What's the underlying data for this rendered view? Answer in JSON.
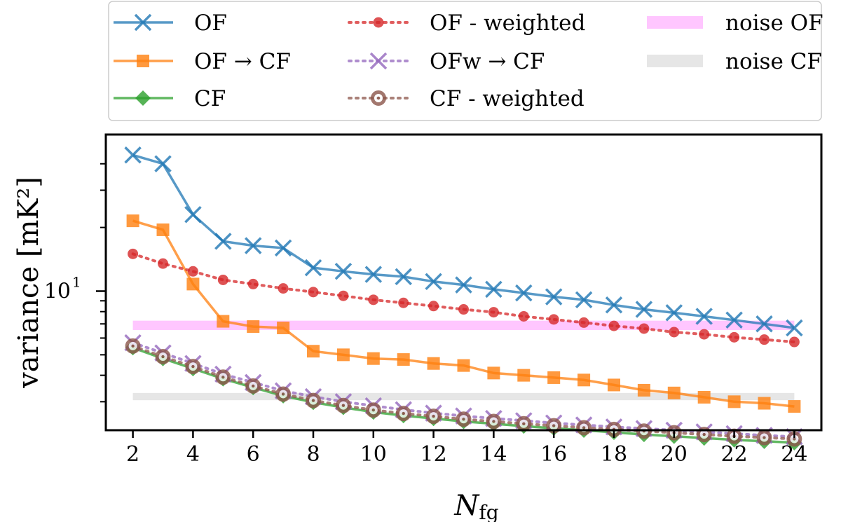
{
  "chart_data": {
    "type": "line",
    "xlabel": "N",
    "xlabel_sub": "fg",
    "ylabel": "variance [mK²]",
    "yscale": "log",
    "xlim": [
      1.1,
      24.9
    ],
    "ylim": [
      2.2,
      55
    ],
    "x": [
      2,
      3,
      4,
      5,
      6,
      7,
      8,
      9,
      10,
      11,
      12,
      13,
      14,
      15,
      16,
      17,
      18,
      19,
      20,
      21,
      22,
      23,
      24
    ],
    "x_ticks": [
      2,
      4,
      6,
      8,
      10,
      12,
      14,
      16,
      18,
      20,
      22,
      24
    ],
    "y_major_ticks": [
      {
        "value": 10,
        "label": "10",
        "exp": "1"
      }
    ],
    "y_minor_ticks": [
      3,
      4,
      5,
      6,
      7,
      8,
      9,
      20,
      30,
      40
    ],
    "series": [
      {
        "name": "OF",
        "color": "#1f77b4",
        "style": "solid",
        "marker": "x",
        "values": [
          44,
          40,
          23,
          17.2,
          16.4,
          16.0,
          12.9,
          12.4,
          12.0,
          11.7,
          11.1,
          10.7,
          10.2,
          9.8,
          9.4,
          9.1,
          8.6,
          8.2,
          7.9,
          7.6,
          7.3,
          7.0,
          6.7
        ]
      },
      {
        "name": "OF → CF",
        "color": "#ff7f0e",
        "style": "solid",
        "marker": "square",
        "values": [
          21.5,
          19.5,
          10.8,
          7.2,
          6.8,
          6.7,
          5.2,
          5.0,
          4.8,
          4.75,
          4.55,
          4.45,
          4.1,
          4.0,
          3.9,
          3.8,
          3.6,
          3.4,
          3.3,
          3.15,
          3.0,
          2.95,
          2.85
        ]
      },
      {
        "name": "CF",
        "color": "#2ca02c",
        "style": "solid",
        "marker": "diamond",
        "values": [
          5.4,
          4.8,
          4.3,
          3.85,
          3.5,
          3.2,
          2.98,
          2.82,
          2.68,
          2.58,
          2.5,
          2.42,
          2.36,
          2.3,
          2.25,
          2.2,
          2.15,
          2.1,
          2.06,
          2.02,
          1.98,
          1.95,
          1.92
        ]
      },
      {
        "name": "OF - weighted",
        "color": "#d62728",
        "style": "dotted",
        "marker": "circle",
        "values": [
          15.0,
          13.5,
          12.4,
          11.3,
          10.8,
          10.3,
          9.9,
          9.5,
          9.1,
          8.8,
          8.5,
          8.2,
          7.95,
          7.6,
          7.35,
          7.1,
          6.85,
          6.65,
          6.4,
          6.25,
          6.05,
          5.9,
          5.75
        ]
      },
      {
        "name": "OFw → CF",
        "color": "#9467bd",
        "style": "dotted",
        "marker": "x",
        "values": [
          5.7,
          5.1,
          4.55,
          4.05,
          3.7,
          3.38,
          3.17,
          3.0,
          2.87,
          2.75,
          2.65,
          2.57,
          2.5,
          2.44,
          2.38,
          2.33,
          2.28,
          2.24,
          2.2,
          2.16,
          2.12,
          2.08,
          2.05
        ]
      },
      {
        "name": "CF - weighted",
        "color": "#8c564b",
        "style": "dotted",
        "marker": "ring",
        "values": [
          5.5,
          4.9,
          4.4,
          3.92,
          3.56,
          3.26,
          3.04,
          2.88,
          2.74,
          2.64,
          2.56,
          2.48,
          2.42,
          2.36,
          2.31,
          2.26,
          2.22,
          2.18,
          2.14,
          2.1,
          2.06,
          2.03,
          2.0
        ]
      }
    ],
    "bands": [
      {
        "name": "noise OF",
        "color": "#ff80ff",
        "opacity": 0.45,
        "y_low": 6.55,
        "y_high": 7.25,
        "x_start": 2,
        "x_end": 24
      },
      {
        "name": "noise CF",
        "color": "#c8c8c8",
        "opacity": 0.45,
        "y_low": 3.05,
        "y_high": 3.3,
        "x_start": 2,
        "x_end": 24
      }
    ],
    "legend": {
      "position": "top, above plot",
      "columns": [
        [
          "OF",
          "OF → CF",
          "CF"
        ],
        [
          "OF - weighted",
          "OFw → CF",
          "CF - weighted"
        ],
        [
          "noise OF",
          "noise CF"
        ]
      ]
    }
  }
}
